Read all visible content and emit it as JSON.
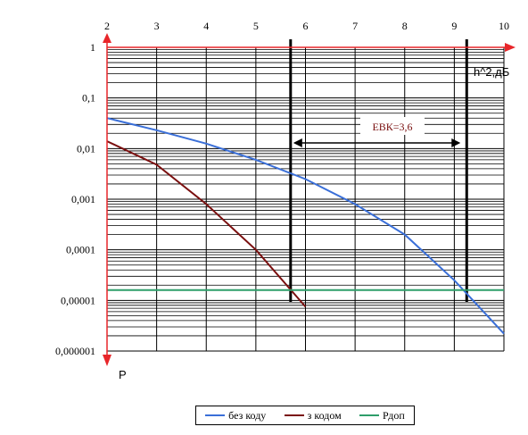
{
  "chart_data": {
    "type": "line",
    "x_ticks": [
      "2",
      "3",
      "4",
      "5",
      "6",
      "7",
      "8",
      "9",
      "10"
    ],
    "y_ticks": [
      "1",
      "0,1",
      "0,01",
      "0,001",
      "0,0001",
      "0,00001",
      "0,000001"
    ],
    "y_scale": "log",
    "xlim": [
      2,
      10
    ],
    "ylim": [
      1e-06,
      1
    ],
    "xlabel": "h^2,дБ",
    "ylabel": "P",
    "grid": true,
    "legend_position": "bottom",
    "series": [
      {
        "name": "без коду",
        "color": "#3a6fd8",
        "x": [
          2,
          3,
          4,
          5,
          6,
          7,
          8,
          9,
          10
        ],
        "y": [
          0.04,
          0.023,
          0.0125,
          0.006,
          0.0025,
          0.0008,
          0.0002,
          2.5e-05,
          2.2e-06
        ]
      },
      {
        "name": "з кодом",
        "color": "#7a0f0f",
        "x": [
          2,
          3,
          4,
          5,
          6
        ],
        "y": [
          0.014,
          0.0048,
          0.0008,
          0.0001,
          7.5e-06
        ]
      },
      {
        "name": "Рдоп",
        "color": "#2e9e6a",
        "x": [
          2,
          10
        ],
        "y": [
          1.6e-05,
          1.6e-05
        ]
      }
    ],
    "markers": [
      {
        "x": 5.7,
        "color": "#000000"
      },
      {
        "x": 9.25,
        "color": "#000000"
      }
    ],
    "annotation": {
      "text": "ЕВК=3,6",
      "from_x": 5.7,
      "to_x": 9.25,
      "y": 0.01
    }
  }
}
